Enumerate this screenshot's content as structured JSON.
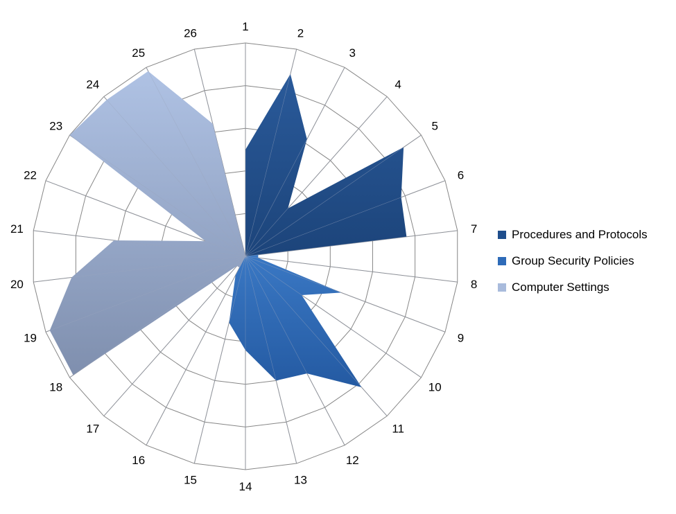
{
  "chart_data": {
    "type": "radar",
    "categories": [
      "1",
      "2",
      "3",
      "4",
      "5",
      "6",
      "7",
      "8",
      "9",
      "10",
      "11",
      "12",
      "13",
      "14",
      "15",
      "16",
      "17",
      "18",
      "19",
      "20",
      "21",
      "22",
      "23",
      "24",
      "25",
      "26"
    ],
    "rlim": [
      0,
      5
    ],
    "grid": true,
    "legend_position": "right",
    "series": [
      {
        "name": "Procedures and Protocols",
        "color": "#1f4e8c",
        "values": [
          2.5,
          4.4,
          3.1,
          1.5,
          4.5,
          3.9,
          3.8,
          0,
          0,
          0,
          0,
          0,
          0,
          0,
          0,
          0,
          0,
          0,
          0,
          0,
          0,
          0,
          0,
          0,
          0,
          0
        ]
      },
      {
        "name": "Group Security Policies",
        "color": "#2e6bb8",
        "values": [
          0,
          0,
          0,
          0,
          0,
          0,
          0.3,
          0.3,
          2.4,
          1.6,
          4.1,
          3.1,
          3.0,
          2.2,
          1.6,
          0.5,
          0,
          0,
          0,
          0,
          0,
          0,
          0,
          0,
          0,
          0
        ]
      },
      {
        "name": "Computer Settings",
        "color": "#a9bbdc",
        "values": [
          0,
          0,
          0,
          0,
          0,
          0,
          0,
          0,
          0,
          0,
          0,
          0,
          0,
          0,
          0,
          0.3,
          0.3,
          4.9,
          4.9,
          4.1,
          3.1,
          1.0,
          5.0,
          4.9,
          4.9,
          3.2
        ]
      }
    ]
  }
}
